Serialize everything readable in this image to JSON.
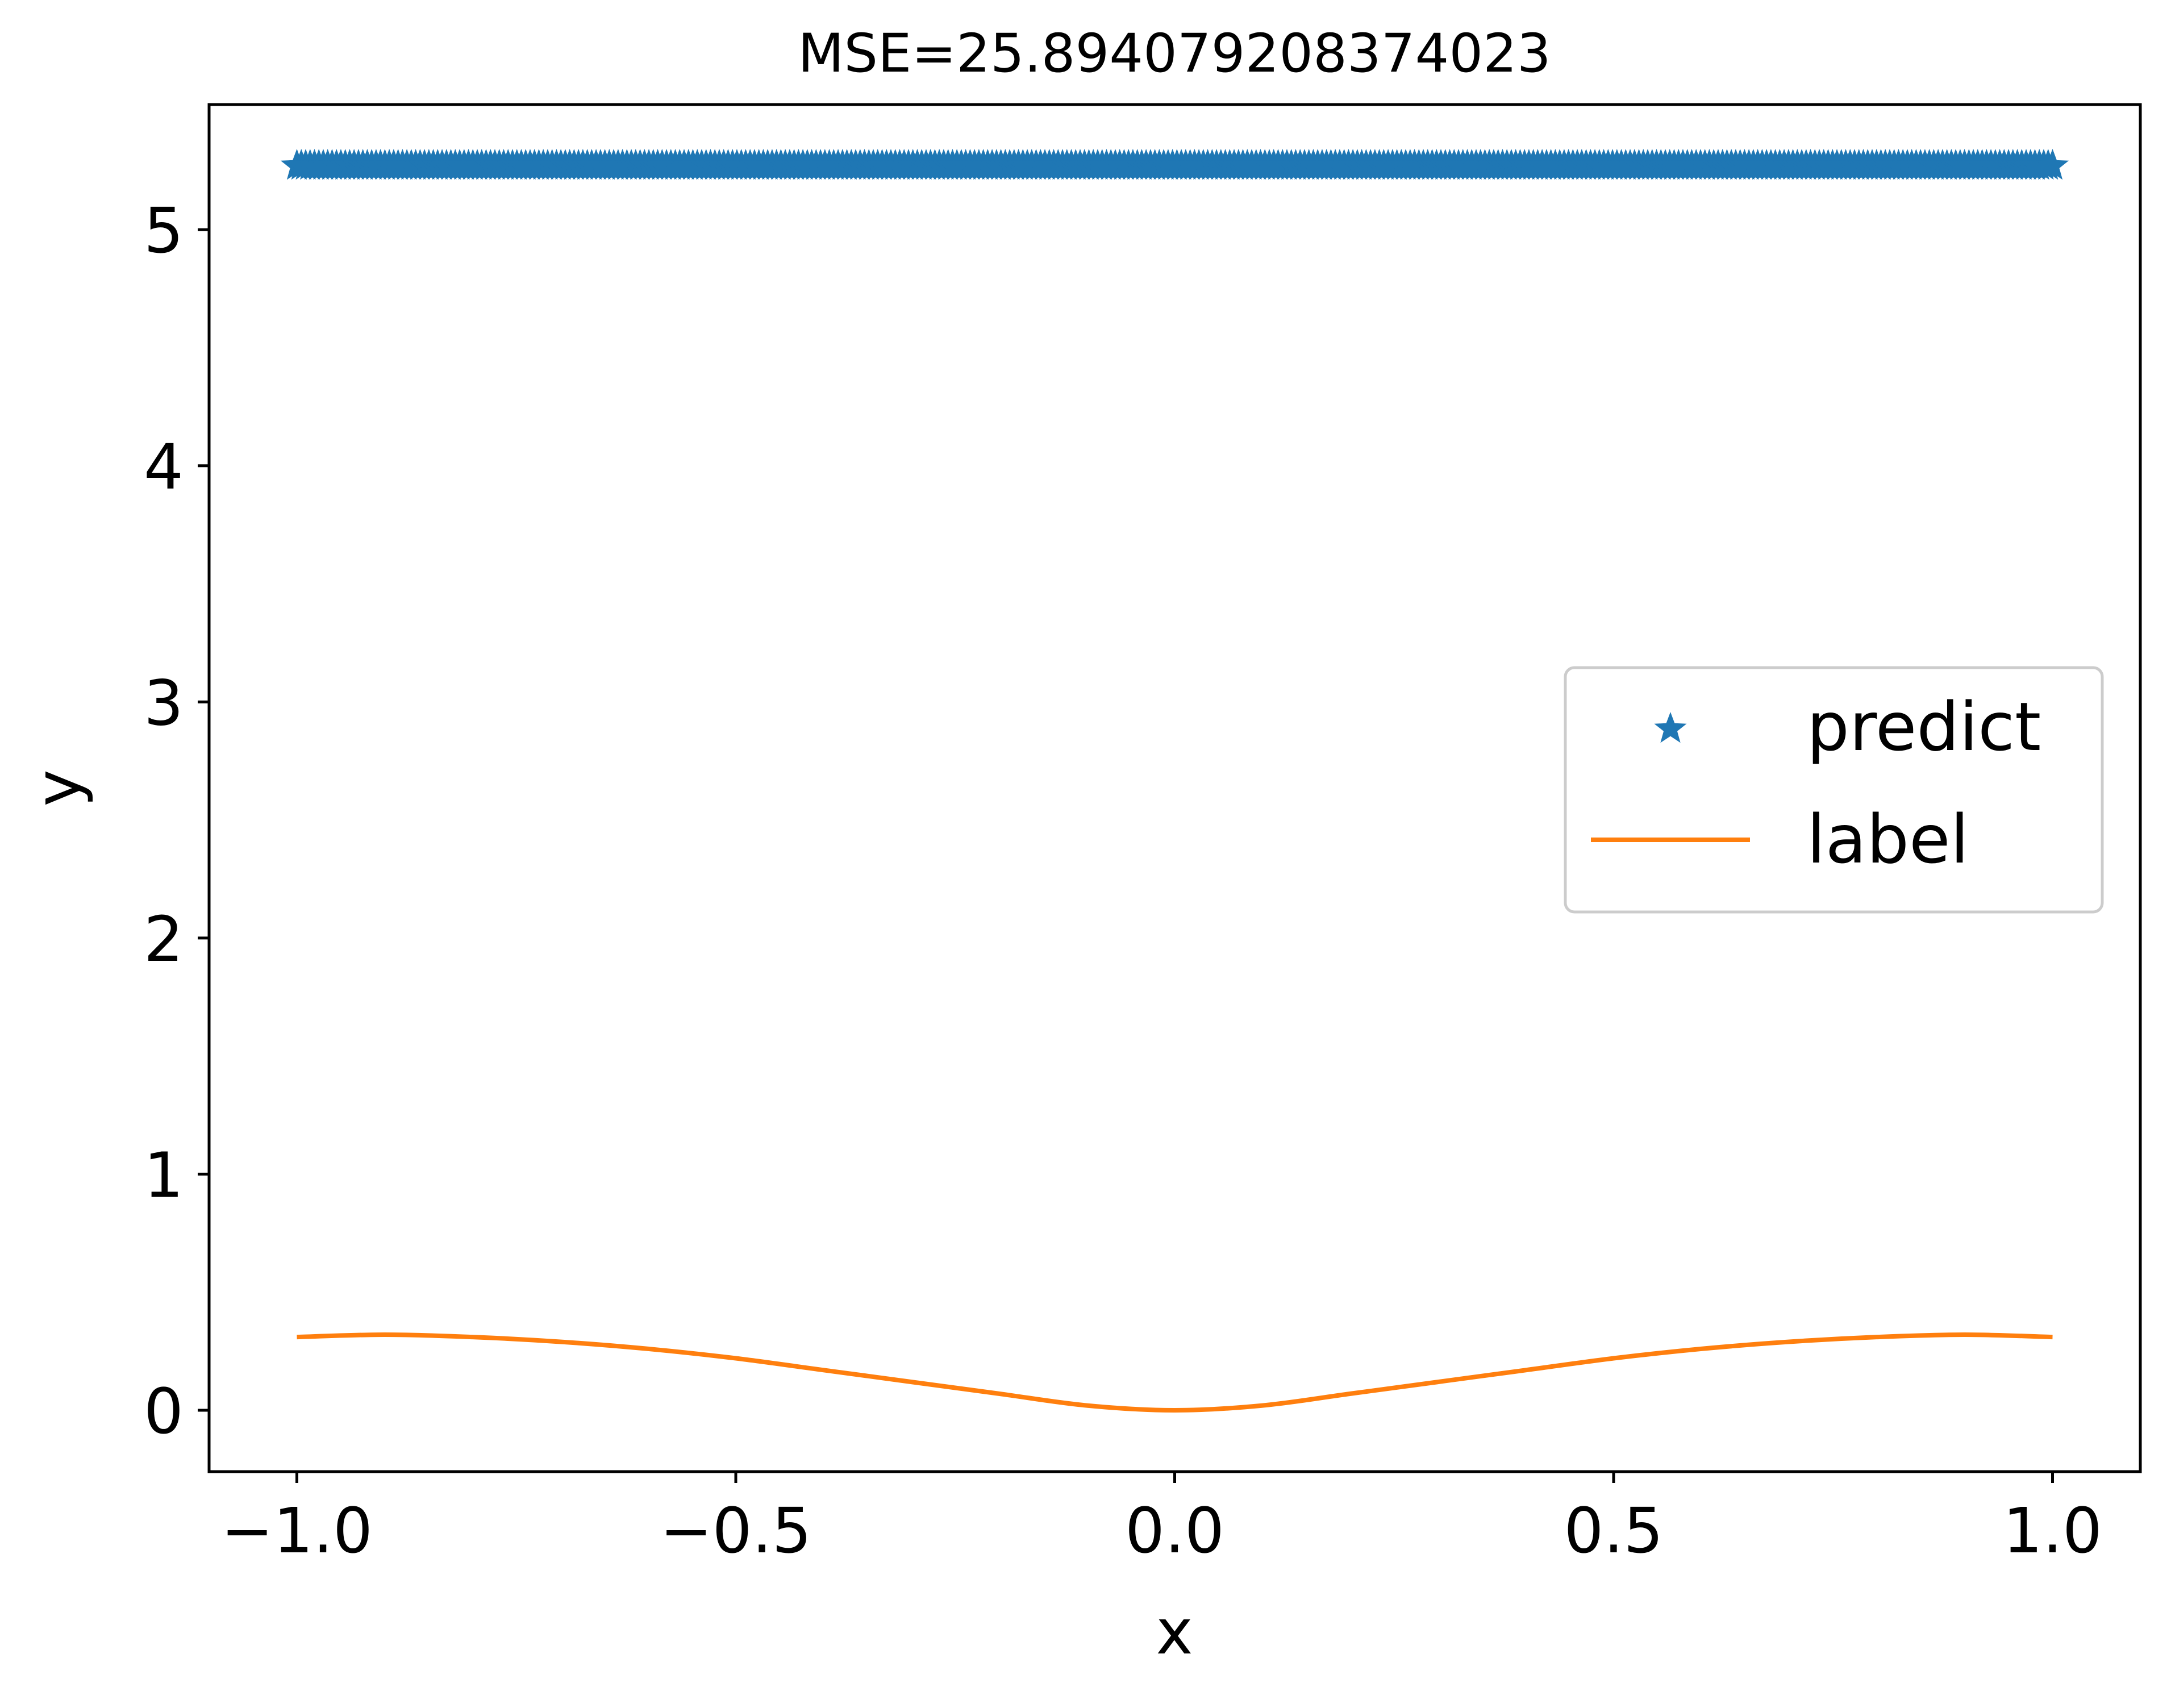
{
  "chart_data": {
    "type": "line",
    "title": "MSE=25.894079208374023",
    "xlabel": "x",
    "ylabel": "y",
    "xlim": [
      -1.1,
      1.1
    ],
    "ylim": [
      -0.26,
      5.53
    ],
    "xticks": [
      -1.0,
      -0.5,
      0.0,
      0.5,
      1.0
    ],
    "xtick_labels": [
      "−1.0",
      "−0.5",
      "0.0",
      "0.5",
      "1.0"
    ],
    "yticks": [
      0,
      1,
      2,
      3,
      4,
      5
    ],
    "ytick_labels": [
      "0",
      "1",
      "2",
      "3",
      "4",
      "5"
    ],
    "grid": false,
    "legend_position": "center-right",
    "series": [
      {
        "name": "predict",
        "style": "markers",
        "marker": "star",
        "color": "#1f77b4",
        "x_range": [
          -1.0,
          1.0
        ],
        "y_constant": 5.27
      },
      {
        "name": "label",
        "style": "line",
        "color": "#ff7f0e",
        "x": [
          -1.0,
          -0.9,
          -0.8,
          -0.7,
          -0.6,
          -0.5,
          -0.4,
          -0.3,
          -0.2,
          -0.1,
          0.0,
          0.1,
          0.2,
          0.3,
          0.4,
          0.5,
          0.6,
          0.7,
          0.8,
          0.9,
          1.0
        ],
        "y": [
          0.31,
          0.32,
          0.31,
          0.29,
          0.26,
          0.22,
          0.17,
          0.12,
          0.07,
          0.02,
          0.0,
          0.02,
          0.07,
          0.12,
          0.17,
          0.22,
          0.26,
          0.29,
          0.31,
          0.32,
          0.31
        ]
      }
    ]
  }
}
